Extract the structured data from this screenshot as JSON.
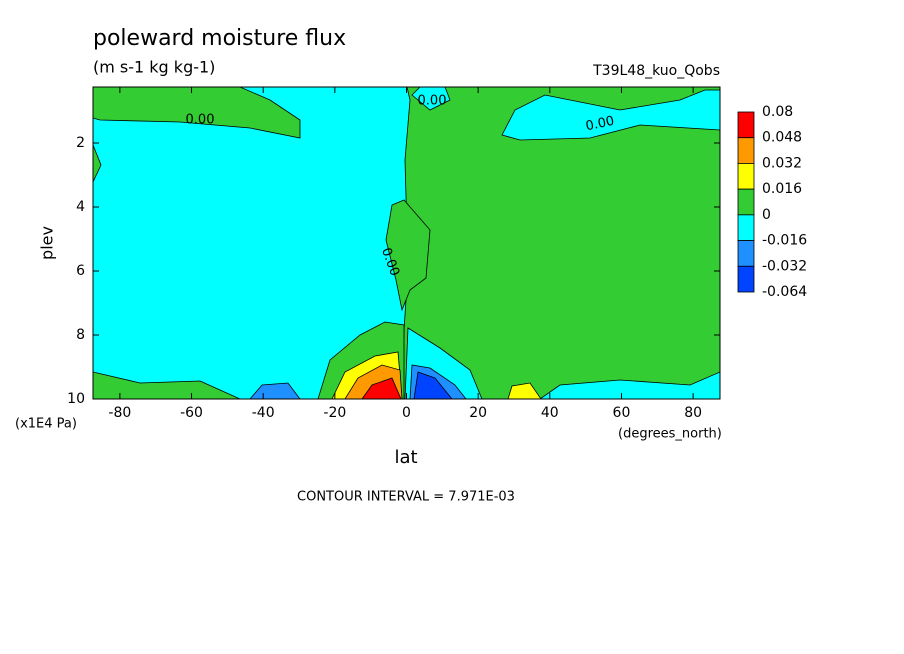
{
  "chart_data": {
    "type": "contour",
    "title": "poleward moisture flux",
    "subtitle": "(m s-1 kg kg-1)",
    "dataset": "T39L48_kuo_Qobs",
    "xlabel": "lat",
    "x_units": "(degrees_north)",
    "ylabel": "plev",
    "y_units": "(x1E4 Pa)",
    "footnote": "CONTOUR INTERVAL = 7.971E-03",
    "xlim": [
      -87.5,
      87.5
    ],
    "xticks": [
      -80,
      -60,
      -40,
      -20,
      0,
      20,
      40,
      60,
      80
    ],
    "ylim": [
      0.25,
      10
    ],
    "yticks": [
      2,
      4,
      6,
      8,
      10
    ],
    "levels": [
      0.08,
      0.048,
      0.032,
      0.016,
      0,
      -0.016,
      -0.032,
      -0.064
    ],
    "level_colors": [
      "#ff0000",
      "#ff9900",
      "#ffff00",
      "#33cc33",
      "#00ffff",
      "#1e90ff",
      "#0044ff"
    ],
    "contour_labels": [
      "0.00",
      "0.00",
      "0.00",
      "0.00"
    ]
  }
}
